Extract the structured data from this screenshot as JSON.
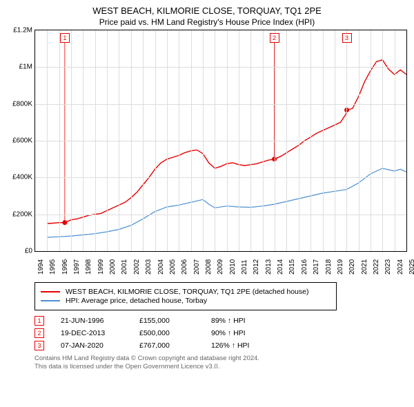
{
  "title_main": "WEST BEACH, KILMORIE CLOSE, TORQUAY, TQ1 2PE",
  "title_sub": "Price paid vs. HM Land Registry's House Price Index (HPI)",
  "chart": {
    "type": "line",
    "background_color": "#ffffff",
    "grid_color": "#dddddd",
    "xlim": [
      1994,
      2025
    ],
    "ylim": [
      0,
      1200000
    ],
    "y_ticks": [
      {
        "v": 0,
        "label": "£0"
      },
      {
        "v": 200000,
        "label": "£200K"
      },
      {
        "v": 400000,
        "label": "£400K"
      },
      {
        "v": 600000,
        "label": "£600K"
      },
      {
        "v": 800000,
        "label": "£800K"
      },
      {
        "v": 1000000,
        "label": "£1M"
      },
      {
        "v": 1200000,
        "label": "£1.2M"
      }
    ],
    "x_ticks": [
      1994,
      1995,
      1996,
      1997,
      1998,
      1999,
      2000,
      2001,
      2002,
      2003,
      2004,
      2005,
      2006,
      2007,
      2008,
      2009,
      2010,
      2011,
      2012,
      2013,
      2014,
      2015,
      2016,
      2017,
      2018,
      2019,
      2020,
      2021,
      2022,
      2023,
      2024,
      2025
    ],
    "series": [
      {
        "name": "WEST BEACH, KILMORIE CLOSE, TORQUAY, TQ1 2PE (detached house)",
        "color": "#e60000",
        "line_width": 1.4,
        "data": [
          [
            1995.0,
            150000
          ],
          [
            1995.5,
            152000
          ],
          [
            1996.0,
            155000
          ],
          [
            1996.47,
            155000
          ],
          [
            1997.0,
            170000
          ],
          [
            1997.5,
            175000
          ],
          [
            1998.0,
            185000
          ],
          [
            1998.5,
            195000
          ],
          [
            1999.0,
            200000
          ],
          [
            1999.5,
            205000
          ],
          [
            2000.0,
            220000
          ],
          [
            2000.5,
            235000
          ],
          [
            2001.0,
            250000
          ],
          [
            2001.5,
            265000
          ],
          [
            2002.0,
            290000
          ],
          [
            2002.5,
            320000
          ],
          [
            2003.0,
            360000
          ],
          [
            2003.5,
            400000
          ],
          [
            2004.0,
            445000
          ],
          [
            2004.5,
            480000
          ],
          [
            2005.0,
            500000
          ],
          [
            2005.5,
            510000
          ],
          [
            2006.0,
            520000
          ],
          [
            2006.5,
            535000
          ],
          [
            2007.0,
            545000
          ],
          [
            2007.5,
            550000
          ],
          [
            2008.0,
            530000
          ],
          [
            2008.5,
            480000
          ],
          [
            2009.0,
            450000
          ],
          [
            2009.5,
            460000
          ],
          [
            2010.0,
            475000
          ],
          [
            2010.5,
            480000
          ],
          [
            2011.0,
            470000
          ],
          [
            2011.5,
            465000
          ],
          [
            2012.0,
            470000
          ],
          [
            2012.5,
            475000
          ],
          [
            2013.0,
            485000
          ],
          [
            2013.5,
            495000
          ],
          [
            2013.97,
            500000
          ],
          [
            2014.5,
            515000
          ],
          [
            2015.0,
            535000
          ],
          [
            2015.5,
            555000
          ],
          [
            2016.0,
            575000
          ],
          [
            2016.5,
            600000
          ],
          [
            2017.0,
            620000
          ],
          [
            2017.5,
            640000
          ],
          [
            2018.0,
            655000
          ],
          [
            2018.5,
            670000
          ],
          [
            2019.0,
            685000
          ],
          [
            2019.5,
            700000
          ],
          [
            2020.0,
            750000
          ],
          [
            2020.02,
            767000
          ],
          [
            2020.5,
            775000
          ],
          [
            2021.0,
            840000
          ],
          [
            2021.5,
            920000
          ],
          [
            2022.0,
            980000
          ],
          [
            2022.5,
            1030000
          ],
          [
            2023.0,
            1040000
          ],
          [
            2023.5,
            990000
          ],
          [
            2024.0,
            960000
          ],
          [
            2024.5,
            985000
          ],
          [
            2025.0,
            960000
          ]
        ]
      },
      {
        "name": "HPI: Average price, detached house, Torbay",
        "color": "#4a8fd1",
        "line_width": 1.2,
        "data": [
          [
            1995.0,
            75000
          ],
          [
            1996.0,
            78000
          ],
          [
            1997.0,
            82000
          ],
          [
            1998.0,
            88000
          ],
          [
            1999.0,
            95000
          ],
          [
            2000.0,
            105000
          ],
          [
            2001.0,
            118000
          ],
          [
            2002.0,
            140000
          ],
          [
            2003.0,
            175000
          ],
          [
            2004.0,
            215000
          ],
          [
            2005.0,
            240000
          ],
          [
            2006.0,
            250000
          ],
          [
            2007.0,
            265000
          ],
          [
            2008.0,
            280000
          ],
          [
            2008.5,
            255000
          ],
          [
            2009.0,
            235000
          ],
          [
            2010.0,
            245000
          ],
          [
            2011.0,
            240000
          ],
          [
            2012.0,
            238000
          ],
          [
            2013.0,
            245000
          ],
          [
            2014.0,
            255000
          ],
          [
            2015.0,
            270000
          ],
          [
            2016.0,
            285000
          ],
          [
            2017.0,
            300000
          ],
          [
            2018.0,
            315000
          ],
          [
            2019.0,
            325000
          ],
          [
            2020.0,
            335000
          ],
          [
            2021.0,
            370000
          ],
          [
            2022.0,
            420000
          ],
          [
            2023.0,
            450000
          ],
          [
            2024.0,
            435000
          ],
          [
            2024.5,
            445000
          ],
          [
            2025.0,
            430000
          ]
        ]
      }
    ],
    "event_markers": [
      {
        "id": "1",
        "x": 1996.47,
        "y": 155000
      },
      {
        "id": "2",
        "x": 2013.97,
        "y": 500000
      },
      {
        "id": "3",
        "x": 2020.02,
        "y": 767000
      }
    ],
    "marker_point_color": "#e60000",
    "marker_point_radius": 3.5
  },
  "legend": {
    "items": [
      {
        "color": "#e60000",
        "label": "WEST BEACH, KILMORIE CLOSE, TORQUAY, TQ1 2PE (detached house)"
      },
      {
        "color": "#4a8fd1",
        "label": "HPI: Average price, detached house, Torbay"
      }
    ]
  },
  "events_table": [
    {
      "id": "1",
      "date": "21-JUN-1996",
      "price": "£155,000",
      "hpi": "89% ↑ HPI"
    },
    {
      "id": "2",
      "date": "19-DEC-2013",
      "price": "£500,000",
      "hpi": "90% ↑ HPI"
    },
    {
      "id": "3",
      "date": "07-JAN-2020",
      "price": "£767,000",
      "hpi": "126% ↑ HPI"
    }
  ],
  "footer": {
    "line1": "Contains HM Land Registry data © Crown copyright and database right 2024.",
    "line2": "This data is licensed under the Open Government Licence v3.0."
  }
}
